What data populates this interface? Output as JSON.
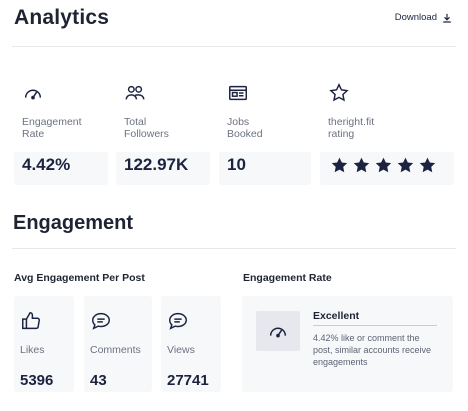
{
  "header": {
    "title": "Analytics",
    "download_label": "Download"
  },
  "stats": [
    {
      "icon": "gauge-icon",
      "label_line1": "Engagement",
      "label_line2": "Rate",
      "value": "4.42%"
    },
    {
      "icon": "followers-icon",
      "label_line1": "Total",
      "label_line2": "Followers",
      "value": "122.97K"
    },
    {
      "icon": "jobs-icon",
      "label_line1": "Jobs",
      "label_line2": "Booked",
      "value": "10"
    },
    {
      "icon": "star-outline-icon",
      "label_line1": "theright.fit",
      "label_line2": "rating",
      "rating": 5
    }
  ],
  "engagement": {
    "title": "Engagement",
    "avg_heading": "Avg Engagement Per Post",
    "rate_heading": "Engagement Rate",
    "metrics": [
      {
        "icon": "thumbs-up-icon",
        "label": "Likes",
        "value": "5396"
      },
      {
        "icon": "comments-icon",
        "label": "Comments",
        "value": "43"
      },
      {
        "icon": "views-icon",
        "label": "Views",
        "value": "27741"
      }
    ],
    "rate": {
      "title": "Excellent",
      "description": "4.42% like or comment the post, similar accounts receive engagements"
    }
  },
  "colors": {
    "accent": "#1c2340",
    "card_bg": "#f7f8fa",
    "muted_text": "#6c7282"
  }
}
